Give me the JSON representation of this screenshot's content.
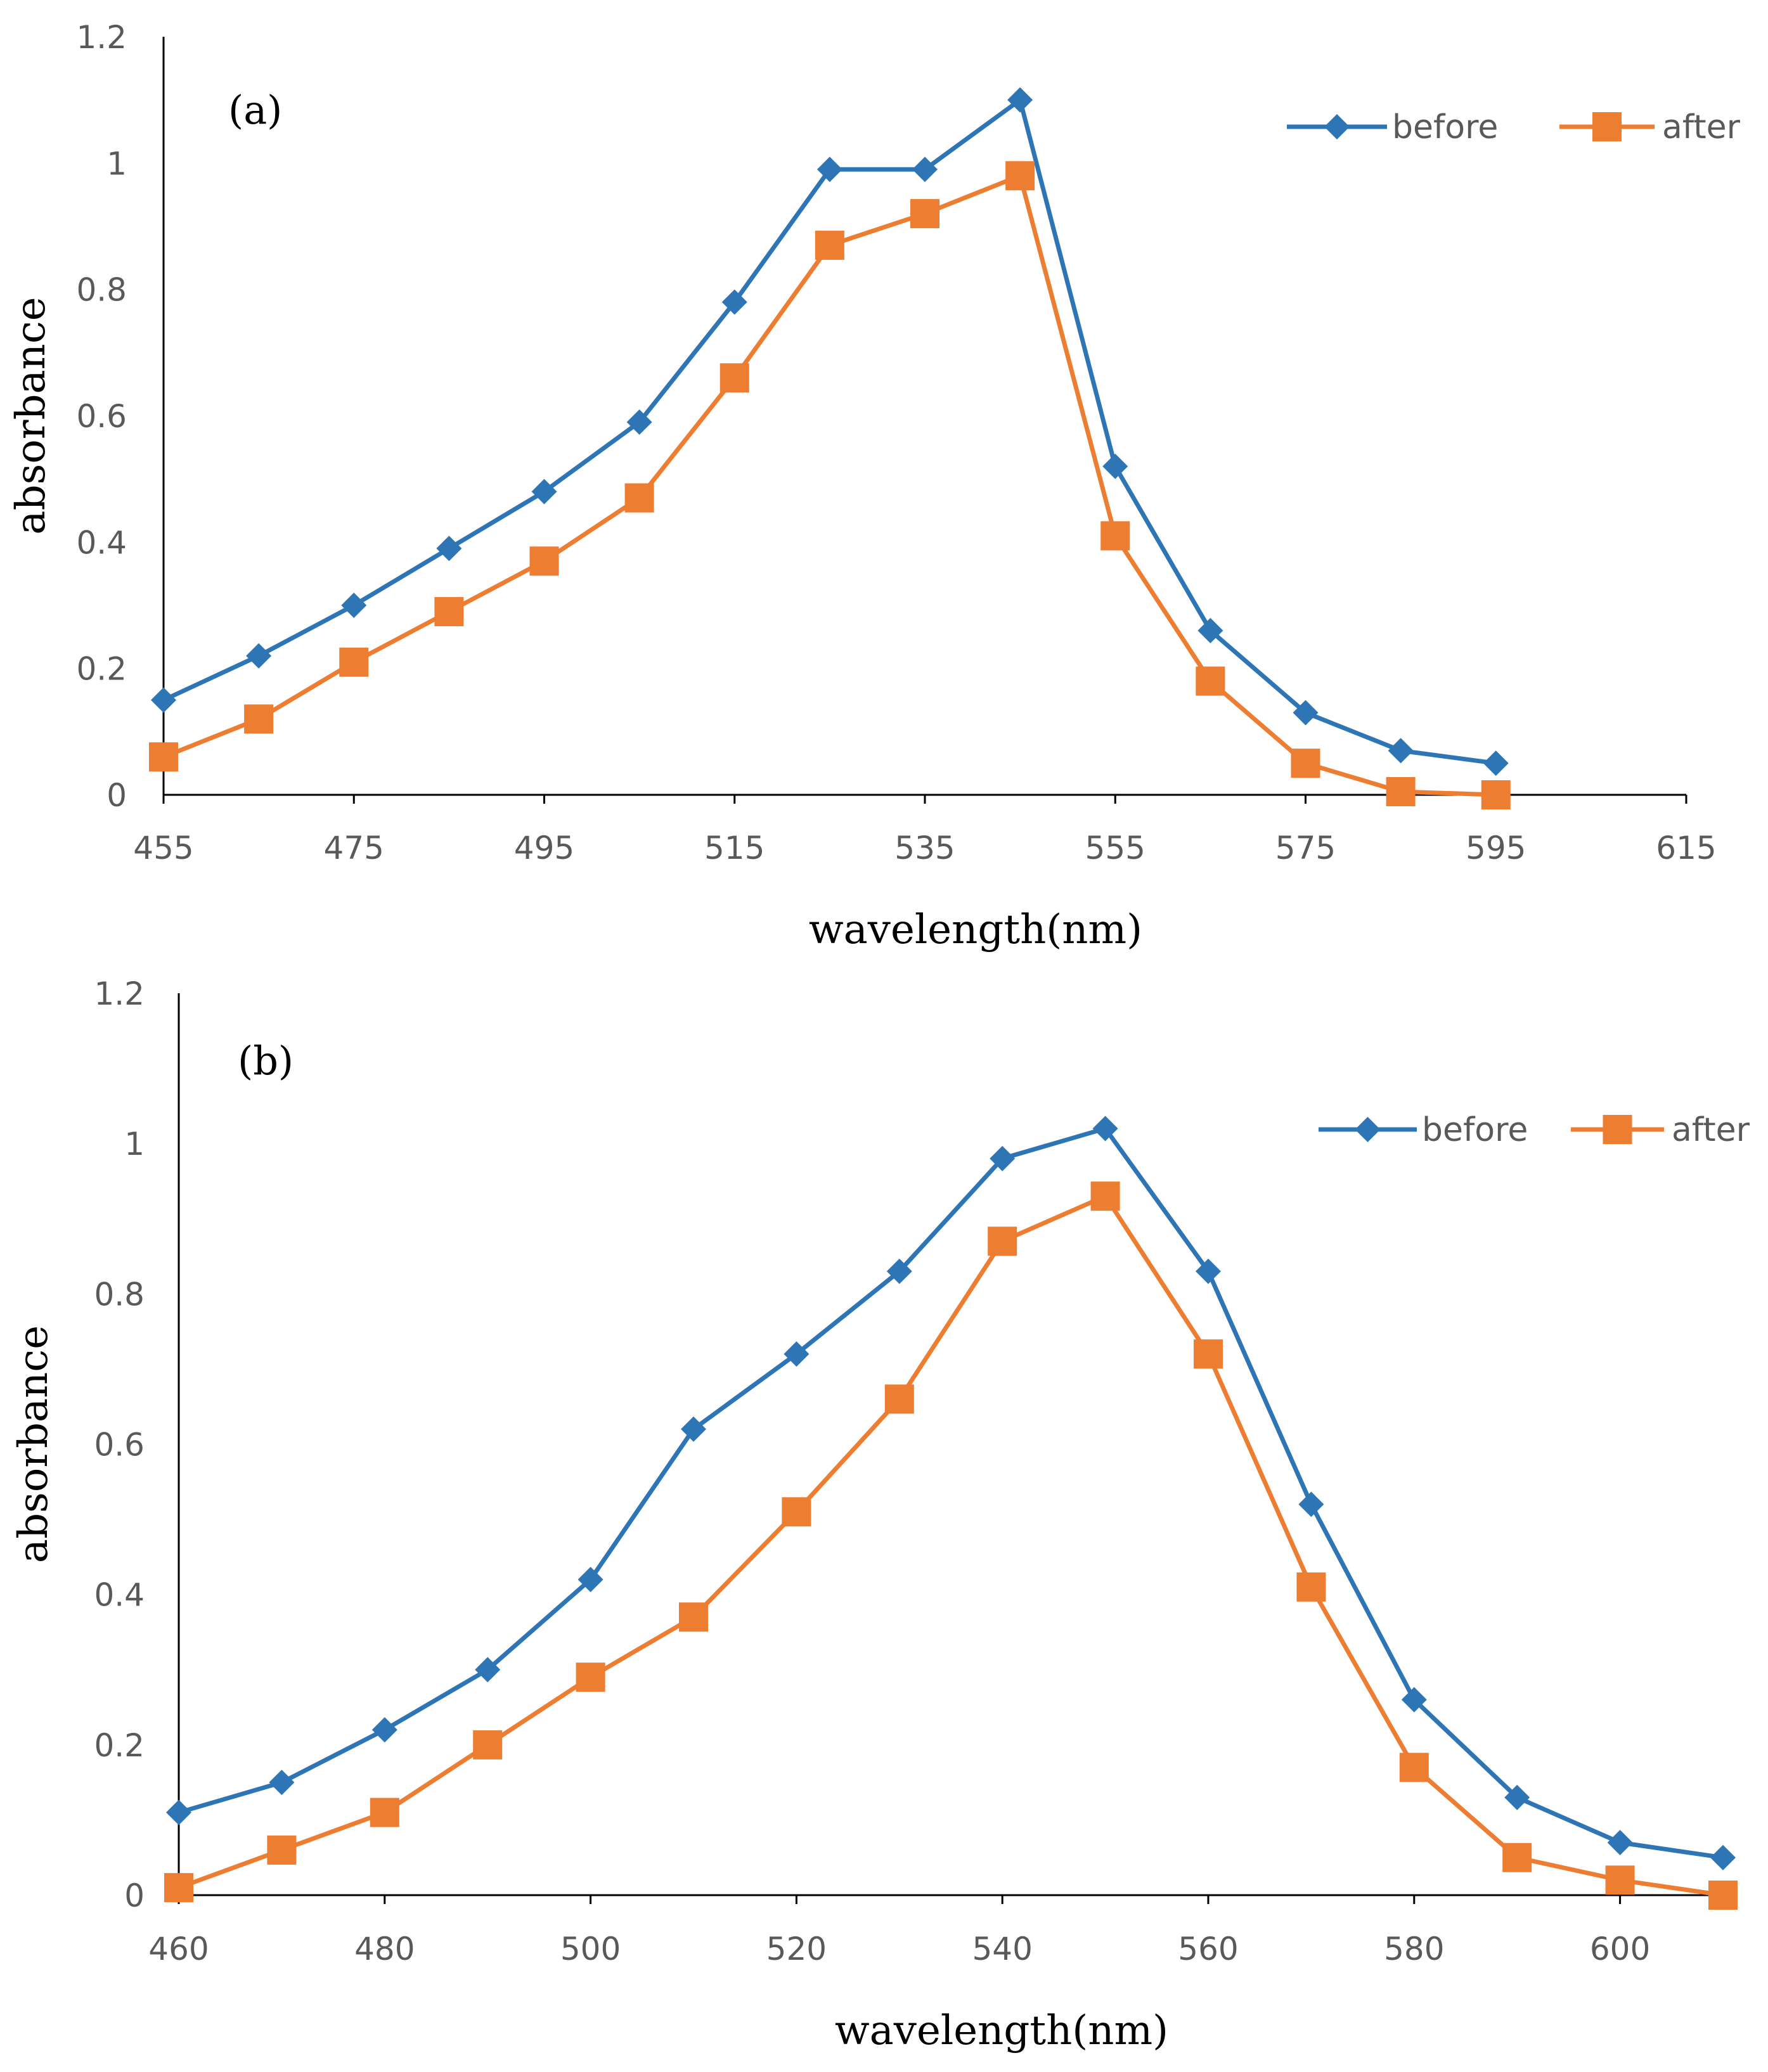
{
  "colors": {
    "before": "#2E75B6",
    "after": "#ED7D31",
    "axis": "#000000",
    "tick_text": "#595959"
  },
  "marker_shapes": {
    "before": "diamond",
    "after": "square"
  },
  "chart_data": [
    {
      "type": "line",
      "panel_label": "(a)",
      "xlabel": "wavelength(nm)",
      "ylabel": "absorbance",
      "xlim": [
        455,
        615
      ],
      "ylim": [
        0,
        1.2
      ],
      "x_ticks": [
        455,
        475,
        495,
        515,
        535,
        555,
        575,
        595,
        615
      ],
      "x_tick_labels": [
        "455",
        "475",
        "495",
        "515",
        "535",
        "555",
        "575",
        "595",
        "615"
      ],
      "y_ticks": [
        0,
        0.2,
        0.4,
        0.6,
        0.8,
        1,
        1.2
      ],
      "y_tick_labels": [
        "0",
        "0.2",
        "0.4",
        "0.6",
        "0.8",
        "1",
        "1.2"
      ],
      "grid": false,
      "legend_position": "top-right",
      "x": [
        455,
        465,
        475,
        485,
        495,
        505,
        515,
        525,
        535,
        545,
        555,
        565,
        575,
        585,
        595
      ],
      "series": [
        {
          "name": "before",
          "key": "before",
          "values": [
            0.15,
            0.22,
            0.3,
            0.39,
            0.48,
            0.59,
            0.78,
            0.99,
            0.99,
            1.1,
            0.52,
            0.26,
            0.13,
            0.07,
            0.05
          ]
        },
        {
          "name": "after",
          "key": "after",
          "values": [
            0.06,
            0.12,
            0.21,
            0.29,
            0.37,
            0.47,
            0.66,
            0.87,
            0.92,
            0.98,
            0.41,
            0.18,
            0.05,
            0.005,
            0.0
          ]
        }
      ]
    },
    {
      "type": "line",
      "panel_label": "(b)",
      "xlabel": "wavelength(nm)",
      "ylabel": "absorbance",
      "xlim": [
        460,
        610
      ],
      "ylim": [
        0,
        1.2
      ],
      "x_ticks": [
        460,
        480,
        500,
        520,
        540,
        560,
        580,
        600
      ],
      "x_tick_labels": [
        "460",
        "480",
        "500",
        "520",
        "540",
        "560",
        "580",
        "600"
      ],
      "y_ticks": [
        0,
        0.2,
        0.4,
        0.6,
        0.8,
        1,
        1.2
      ],
      "y_tick_labels": [
        "0",
        "0.2",
        "0.4",
        "0.6",
        "0.8",
        "1",
        "1.2"
      ],
      "grid": false,
      "legend_position": "top-right",
      "x": [
        460,
        470,
        480,
        490,
        500,
        510,
        520,
        530,
        540,
        550,
        560,
        570,
        580,
        590,
        600,
        610
      ],
      "series": [
        {
          "name": "before",
          "key": "before",
          "values": [
            0.11,
            0.15,
            0.22,
            0.3,
            0.42,
            0.62,
            0.72,
            0.83,
            0.98,
            1.02,
            0.83,
            0.52,
            0.26,
            0.13,
            0.07,
            0.05
          ]
        },
        {
          "name": "after",
          "key": "after",
          "values": [
            0.01,
            0.06,
            0.11,
            0.2,
            0.29,
            0.37,
            0.51,
            0.66,
            0.87,
            0.93,
            0.72,
            0.41,
            0.17,
            0.05,
            0.02,
            0.0
          ]
        }
      ]
    }
  ]
}
